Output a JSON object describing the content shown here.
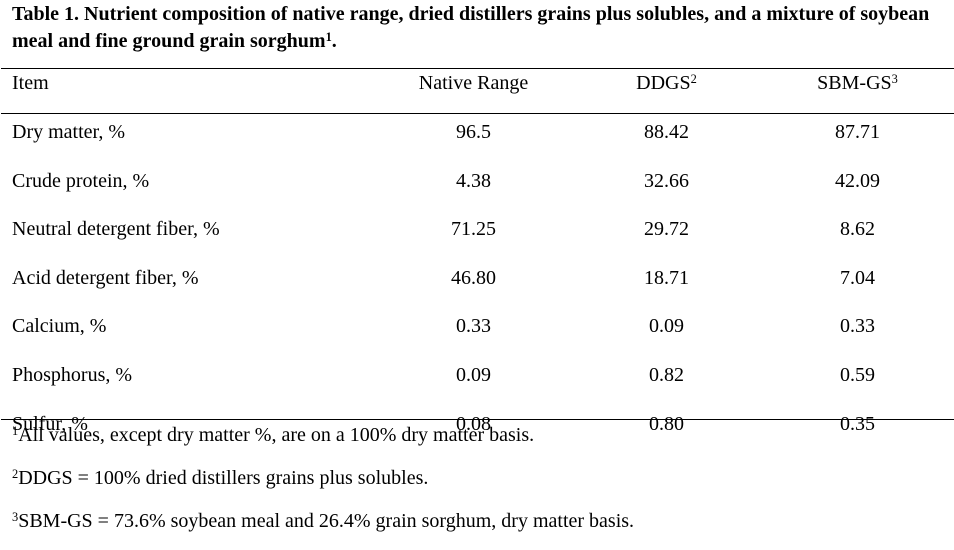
{
  "table": {
    "caption_text": "Table 1. Nutrient composition of native range, dried distillers grains plus solubles, and a mixture of soybean meal and fine ground grain sorghum",
    "caption_sup": "1",
    "caption_end": ".",
    "headers": {
      "item": "Item",
      "native_range": "Native Range",
      "ddgs": "DDGS",
      "ddgs_sup": "2",
      "sbm_gs": "SBM-GS",
      "sbm_gs_sup": "3"
    },
    "rows": [
      {
        "item": "Dry matter, %",
        "native_range": "96.5",
        "ddgs": "88.42",
        "sbm_gs": "87.71"
      },
      {
        "item": "Crude protein, %",
        "native_range": "4.38",
        "ddgs": "32.66",
        "sbm_gs": "42.09"
      },
      {
        "item": "Neutral detergent fiber, %",
        "native_range": "71.25",
        "ddgs": "29.72",
        "sbm_gs": "8.62"
      },
      {
        "item": "Acid detergent fiber, %",
        "native_range": "46.80",
        "ddgs": "18.71",
        "sbm_gs": "7.04"
      },
      {
        "item": "Calcium, %",
        "native_range": "0.33",
        "ddgs": "0.09",
        "sbm_gs": "0.33"
      },
      {
        "item": "Phosphorus, %",
        "native_range": "0.09",
        "ddgs": "0.82",
        "sbm_gs": "0.59"
      },
      {
        "item": "Sulfur, %",
        "native_range": "0.08",
        "ddgs": "0.80",
        "sbm_gs": "0.35"
      }
    ],
    "footnotes": [
      {
        "mark": "1",
        "text": "All values, except dry matter %, are on a 100% dry matter basis."
      },
      {
        "mark": "2",
        "text": "DDGS = 100% dried distillers grains plus solubles."
      },
      {
        "mark": "3",
        "text": "SBM-GS = 73.6% soybean meal and 26.4% grain sorghum, dry matter basis."
      }
    ]
  }
}
